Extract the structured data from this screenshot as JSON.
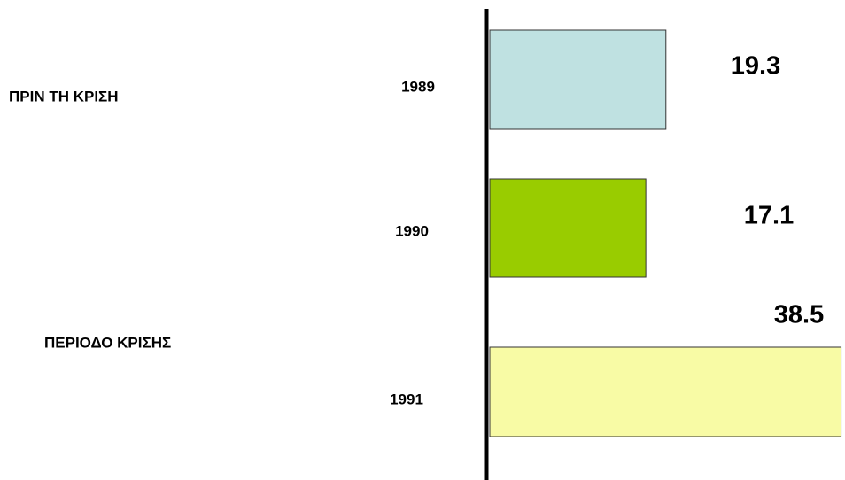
{
  "chart_data": {
    "type": "bar",
    "orientation": "horizontal",
    "categories": [
      "1989",
      "1990",
      "1991"
    ],
    "values": [
      19.3,
      17.1,
      38.5
    ],
    "colors": [
      "#bfe1e1",
      "#99cc00",
      "#f8fba5"
    ],
    "annotations": [
      "ΠΡΙΝ ΤΗ ΚΡΙΣΗ",
      "ΠΕΡΙΟΔΟ ΚΡΙΣΗΣ"
    ]
  }
}
